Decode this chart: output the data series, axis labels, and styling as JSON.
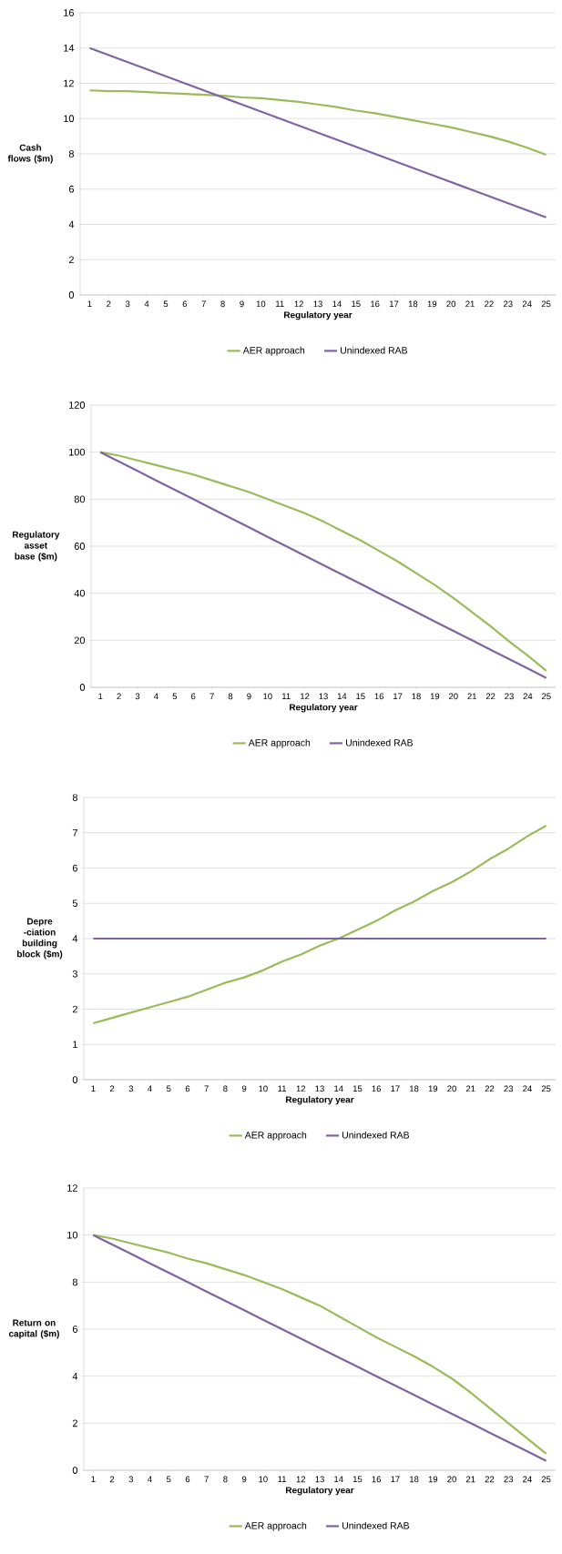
{
  "chart_data": [
    {
      "type": "line",
      "xlabel": "Regulatory year",
      "ylabel": "Cash flows ($m)",
      "categories": [
        "1",
        "2",
        "3",
        "4",
        "5",
        "6",
        "7",
        "8",
        "9",
        "10",
        "11",
        "12",
        "13",
        "14",
        "15",
        "16",
        "17",
        "18",
        "19",
        "20",
        "21",
        "22",
        "23",
        "24",
        "25"
      ],
      "series": [
        {
          "name": "AER approach",
          "color": "#9bbb59",
          "values": [
            11.6,
            11.55,
            11.55,
            11.5,
            11.45,
            11.4,
            11.35,
            11.3,
            11.2,
            11.15,
            11.05,
            10.95,
            10.8,
            10.65,
            10.45,
            10.3,
            10.1,
            9.9,
            9.7,
            9.5,
            9.25,
            9.0,
            8.7,
            8.35,
            7.95
          ]
        },
        {
          "name": "Unindexed RAB",
          "color": "#8064a2",
          "values": [
            14,
            13.6,
            13.2,
            12.8,
            12.4,
            12,
            11.6,
            11.2,
            10.8,
            10.4,
            10,
            9.6,
            9.2,
            8.8,
            8.4,
            8,
            7.6,
            7.2,
            6.8,
            6.4,
            6,
            5.6,
            5.2,
            4.8,
            4.4
          ]
        }
      ],
      "ylim": [
        0,
        16
      ],
      "yticks": [
        0,
        2,
        4,
        6,
        8,
        10,
        12,
        14,
        16
      ],
      "grid": "y",
      "legend": "bottom"
    },
    {
      "type": "line",
      "xlabel": "Regulatory year",
      "ylabel": "Regulatory asset base ($m)",
      "categories": [
        "1",
        "2",
        "3",
        "4",
        "5",
        "6",
        "7",
        "8",
        "9",
        "10",
        "11",
        "12",
        "13",
        "14",
        "15",
        "16",
        "17",
        "18",
        "19",
        "20",
        "21",
        "22",
        "23",
        "24",
        "25"
      ],
      "series": [
        {
          "name": "AER approach",
          "color": "#9bbb59",
          "values": [
            100,
            98.5,
            96.5,
            94.5,
            92.5,
            90.5,
            88,
            85.5,
            83,
            80,
            77,
            74,
            70.5,
            66.5,
            62.5,
            58,
            53.5,
            48.5,
            43.5,
            38,
            32,
            26,
            19.5,
            13.5,
            7
          ]
        },
        {
          "name": "Unindexed RAB",
          "color": "#8064a2",
          "values": [
            100,
            96,
            92,
            88,
            84,
            80,
            76,
            72,
            68,
            64,
            60,
            56,
            52,
            48,
            44,
            40,
            36,
            32,
            28,
            24,
            20,
            16,
            12,
            8,
            4
          ]
        }
      ],
      "ylim": [
        0,
        120
      ],
      "yticks": [
        0,
        20,
        40,
        60,
        80,
        100,
        120
      ],
      "grid": "y",
      "legend": "bottom"
    },
    {
      "type": "line",
      "xlabel": "Regulatory year",
      "ylabel": "Depre -ciation building block ($m)",
      "categories": [
        "1",
        "2",
        "3",
        "4",
        "5",
        "6",
        "7",
        "8",
        "9",
        "10",
        "11",
        "12",
        "13",
        "14",
        "15",
        "16",
        "17",
        "18",
        "19",
        "20",
        "21",
        "22",
        "23",
        "24",
        "25"
      ],
      "series": [
        {
          "name": "AER approach",
          "color": "#9bbb59",
          "values": [
            1.6,
            1.75,
            1.9,
            2.05,
            2.2,
            2.35,
            2.55,
            2.75,
            2.9,
            3.1,
            3.35,
            3.55,
            3.8,
            4.0,
            4.25,
            4.5,
            4.8,
            5.05,
            5.35,
            5.6,
            5.9,
            6.25,
            6.55,
            6.9,
            7.2
          ]
        },
        {
          "name": "Unindexed RAB",
          "color": "#8064a2",
          "values": [
            4,
            4,
            4,
            4,
            4,
            4,
            4,
            4,
            4,
            4,
            4,
            4,
            4,
            4,
            4,
            4,
            4,
            4,
            4,
            4,
            4,
            4,
            4,
            4,
            4
          ]
        }
      ],
      "ylim": [
        0,
        8
      ],
      "yticks": [
        0,
        1,
        2,
        3,
        4,
        5,
        6,
        7,
        8
      ],
      "grid": "y",
      "legend": "bottom"
    },
    {
      "type": "line",
      "xlabel": "Regulatory year",
      "ylabel": "Return on capital ($m)",
      "categories": [
        "1",
        "2",
        "3",
        "4",
        "5",
        "6",
        "7",
        "8",
        "9",
        "10",
        "11",
        "12",
        "13",
        "14",
        "15",
        "16",
        "17",
        "18",
        "19",
        "20",
        "21",
        "22",
        "23",
        "24",
        "25"
      ],
      "series": [
        {
          "name": "AER approach",
          "color": "#9bbb59",
          "values": [
            10,
            9.85,
            9.65,
            9.45,
            9.25,
            9.0,
            8.8,
            8.55,
            8.3,
            8.0,
            7.7,
            7.35,
            7.0,
            6.55,
            6.1,
            5.65,
            5.25,
            4.85,
            4.4,
            3.9,
            3.3,
            2.65,
            2.0,
            1.35,
            0.7
          ]
        },
        {
          "name": "Unindexed RAB",
          "color": "#8064a2",
          "values": [
            10,
            9.6,
            9.2,
            8.8,
            8.4,
            8.0,
            7.6,
            7.2,
            6.8,
            6.4,
            6.0,
            5.6,
            5.2,
            4.8,
            4.4,
            4.0,
            3.6,
            3.2,
            2.8,
            2.4,
            2.0,
            1.6,
            1.2,
            0.8,
            0.4
          ]
        }
      ],
      "ylim": [
        0,
        12
      ],
      "yticks": [
        0,
        2,
        4,
        6,
        8,
        10,
        12
      ],
      "grid": "y",
      "legend": "bottom"
    }
  ]
}
